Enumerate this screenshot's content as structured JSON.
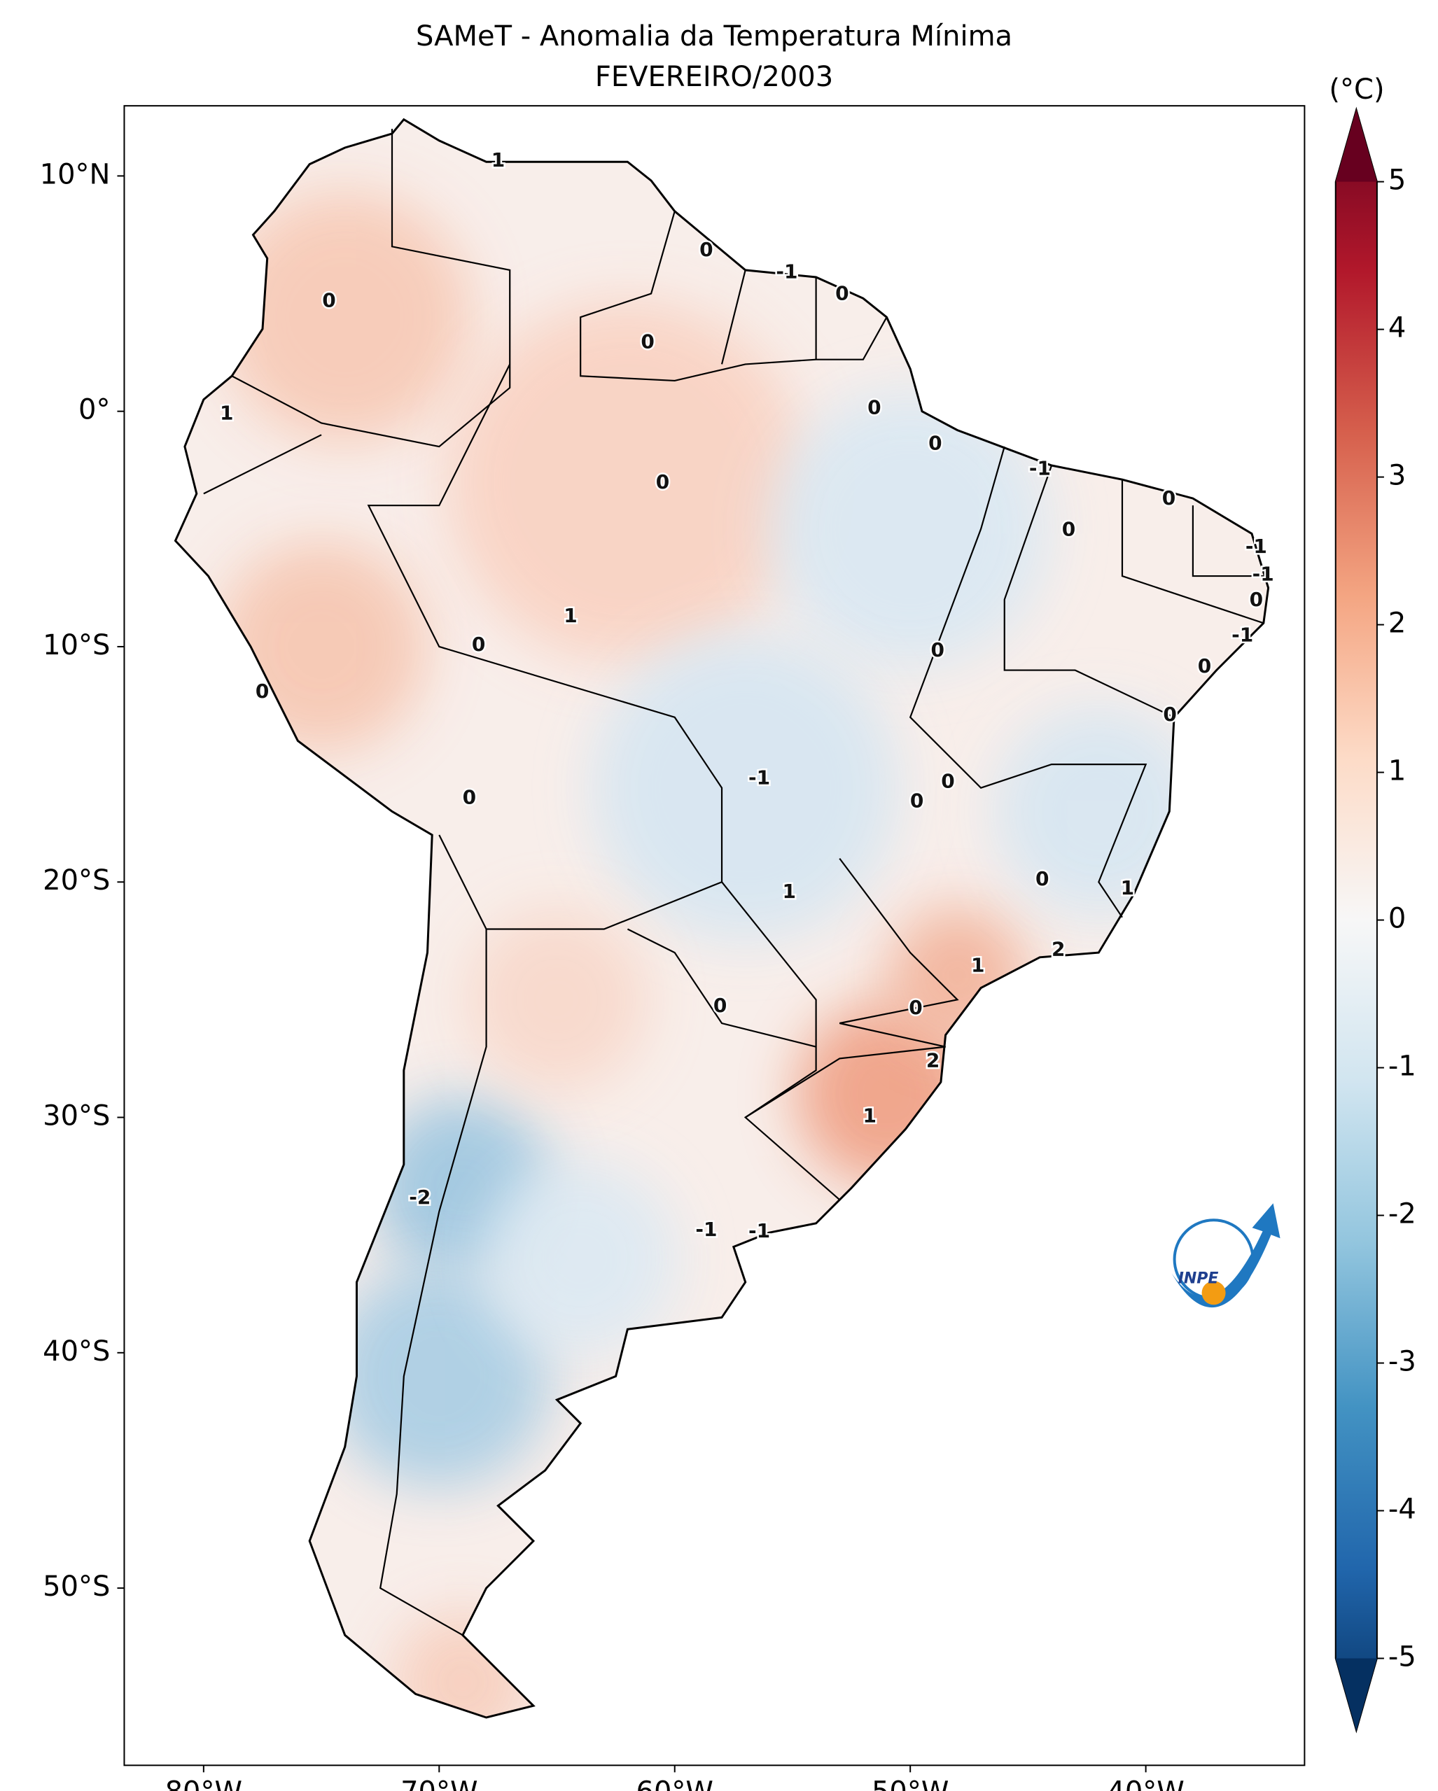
{
  "chart_data": {
    "type": "map",
    "title": "SAMeT - Anomalia da Temperatura Mínima",
    "subtitle": "FEVEREIRO/2003",
    "colorbar_label": "(°C)",
    "xlim": [
      -83.37,
      -33.26
    ],
    "ylim": [
      -57.53,
      12.98
    ],
    "xticks": [
      {
        "value": -80,
        "label": "80°W"
      },
      {
        "value": -70,
        "label": "70°W"
      },
      {
        "value": -60,
        "label": "60°W"
      },
      {
        "value": -50,
        "label": "50°W"
      },
      {
        "value": -40,
        "label": "40°W"
      }
    ],
    "yticks": [
      {
        "value": 10,
        "label": "10°N"
      },
      {
        "value": 0,
        "label": "0°"
      },
      {
        "value": -10,
        "label": "10°S"
      },
      {
        "value": -20,
        "label": "20°S"
      },
      {
        "value": -30,
        "label": "30°S"
      },
      {
        "value": -40,
        "label": "40°S"
      },
      {
        "value": -50,
        "label": "50°S"
      }
    ],
    "colorbar_lim": [
      -5,
      5
    ],
    "colorbar_ticks": [
      5,
      4,
      3,
      2,
      1,
      0,
      -1,
      -2,
      -3,
      -4,
      -5
    ],
    "colors": [
      "#053061",
      "#2166ac",
      "#4393c3",
      "#92c5de",
      "#d1e5f0",
      "#f7f7f7",
      "#fddbc7",
      "#f4a582",
      "#d6604d",
      "#b2182b",
      "#67001f"
    ],
    "contour_labels": [
      1,
      0,
      0,
      0,
      -1,
      0,
      0,
      0,
      -1,
      0,
      0,
      -1,
      -1,
      0,
      -1,
      0,
      0,
      1,
      0,
      1,
      0,
      0,
      0,
      0,
      0,
      -1,
      0,
      1,
      0,
      1,
      2,
      1,
      0,
      0,
      2,
      1,
      -2,
      -1,
      -1
    ],
    "logo_text": "INPE"
  }
}
